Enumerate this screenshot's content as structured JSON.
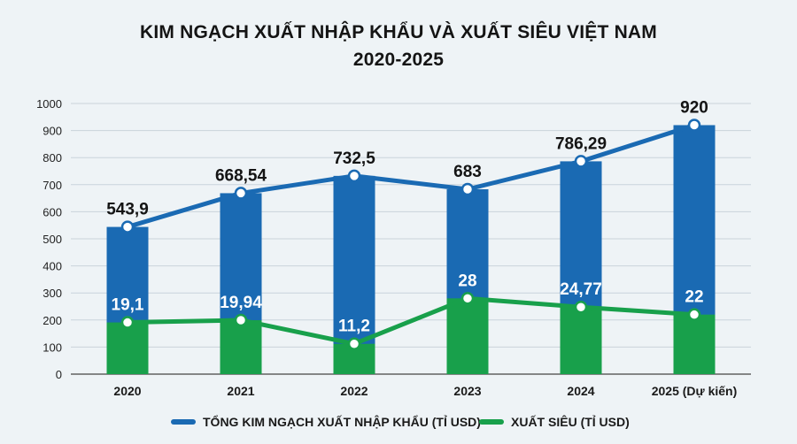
{
  "title_line1": "KIM NGẠCH XUẤT NHẬP KHẨU VÀ XUẤT SIÊU VIỆT NAM",
  "title_line2": "2020-2025",
  "chart_data": {
    "type": "bar",
    "categories": [
      "2020",
      "2021",
      "2022",
      "2023",
      "2024",
      "2025 (Dự kiến)"
    ],
    "series": [
      {
        "name": "TỔNG KIM NGẠCH XUẤT NHẬP KHẨU (TỈ USD)",
        "type": "bar+line",
        "values": [
          543.9,
          668.54,
          732.5,
          683,
          786.29,
          920
        ],
        "labels": [
          "543,9",
          "668,54",
          "732,5",
          "683",
          "786,29",
          "920"
        ],
        "color": "#1a6ab3"
      },
      {
        "name": "XUẤT SIÊU (TỈ USD)",
        "type": "bar+line",
        "values": [
          19.1,
          19.94,
          11.2,
          28,
          24.77,
          22
        ],
        "labels": [
          "19,1",
          "19,94",
          "11,2",
          "28",
          "24,77",
          "22"
        ],
        "color": "#18a04b"
      }
    ],
    "ylim": [
      0,
      1000
    ],
    "yticks": [
      0,
      100,
      200,
      300,
      400,
      500,
      600,
      700,
      800,
      900,
      1000
    ],
    "grid": true,
    "legend_position": "bottom"
  },
  "legend": {
    "total_label": "TỔNG KIM NGẠCH XUẤT NHẬP KHẨU (TỈ USD)",
    "surplus_label": "XUẤT SIÊU (TỈ USD)"
  }
}
